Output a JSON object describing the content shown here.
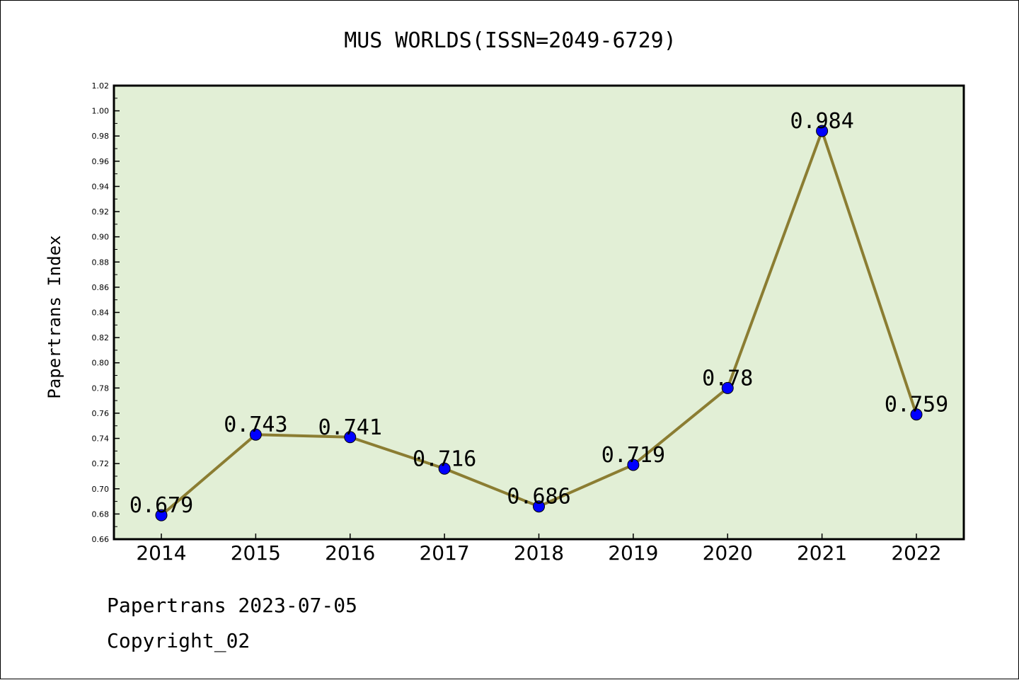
{
  "chart_data": {
    "type": "line",
    "title": "MUS WORLDS(ISSN=2049-6729)",
    "ylabel": "Papertrans Index",
    "xlabel": "",
    "categories": [
      "2014",
      "2015",
      "2016",
      "2017",
      "2018",
      "2019",
      "2020",
      "2021",
      "2022"
    ],
    "values": [
      0.679,
      0.743,
      0.741,
      0.716,
      0.686,
      0.719,
      0.78,
      0.984,
      0.759
    ],
    "data_labels": [
      "0.679",
      "0.743",
      "0.741",
      "0.716",
      "0.686",
      "0.719",
      "0.78",
      "0.984",
      "0.759"
    ],
    "ylim": [
      0.66,
      1.02
    ],
    "yticks": [
      "0.66",
      "0.68",
      "0.70",
      "0.72",
      "0.74",
      "0.76",
      "0.78",
      "0.80",
      "0.82",
      "0.84",
      "0.86",
      "0.88",
      "0.90",
      "0.92",
      "0.94",
      "0.96",
      "0.98",
      "1.00",
      "1.02"
    ],
    "grid": false,
    "legend": "none",
    "colors": {
      "plot_background": "#e2efd6",
      "line": "#8b7d32",
      "marker": "#0000ff",
      "text": "#000000"
    }
  },
  "footer": {
    "line1": "Papertrans 2023-07-05",
    "line2": "Copyright_02"
  }
}
